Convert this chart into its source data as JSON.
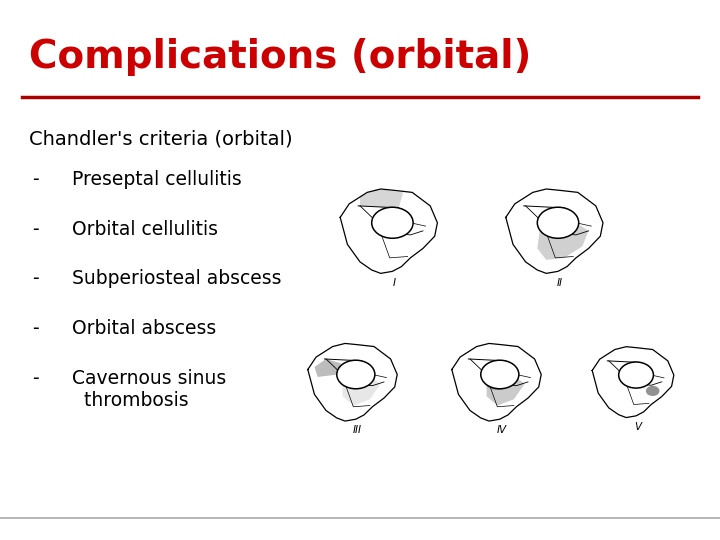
{
  "title": "Complications (orbital)",
  "title_color": "#cc0000",
  "title_fontsize": 28,
  "title_bold": true,
  "divider_color": "#aa0000",
  "background_color": "#ffffff",
  "header_text": "Chandler's criteria (orbital)",
  "bullet_items": [
    "Preseptal cellulitis",
    "Orbital cellulitis",
    "Subperiosteal abscess",
    "Orbital abscess",
    "Cavernous sinus\n  thrombosis"
  ],
  "bullet_fontsize": 13.5,
  "header_fontsize": 14,
  "text_color": "#000000",
  "bottom_line_color": "#aaaaaa"
}
